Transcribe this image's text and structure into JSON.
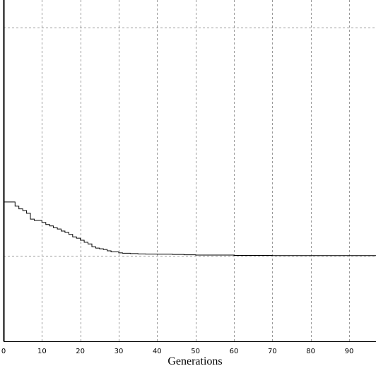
{
  "chart_data": {
    "type": "line",
    "title": "",
    "xlabel": "Generations",
    "ylabel": "",
    "xlim": [
      0,
      97
    ],
    "ylim": [
      0,
      1
    ],
    "x_ticks": [
      0,
      10,
      20,
      30,
      40,
      50,
      60,
      70,
      80,
      90
    ],
    "y_gridlines": [
      0.25,
      0.92
    ],
    "grid": true,
    "line_color": "#000000",
    "grid_color": "#9a9a9a",
    "series": [
      {
        "name": "",
        "x": [
          0,
          2,
          3,
          4,
          5,
          6,
          7,
          8,
          10,
          11,
          12,
          13,
          14,
          15,
          16,
          17,
          18,
          19,
          20,
          21,
          22,
          23,
          24,
          25,
          26,
          27,
          28,
          30,
          31,
          33,
          35,
          37,
          40,
          44,
          47,
          50,
          60,
          70,
          80,
          90,
          97
        ],
        "y": [
          0.408,
          0.408,
          0.396,
          0.388,
          0.383,
          0.375,
          0.358,
          0.354,
          0.348,
          0.342,
          0.338,
          0.333,
          0.329,
          0.323,
          0.319,
          0.313,
          0.306,
          0.302,
          0.296,
          0.29,
          0.285,
          0.277,
          0.273,
          0.271,
          0.269,
          0.265,
          0.262,
          0.259,
          0.258,
          0.257,
          0.256,
          0.2555,
          0.255,
          0.2545,
          0.2535,
          0.2525,
          0.2515,
          0.251,
          0.251,
          0.251,
          0.251
        ]
      }
    ]
  }
}
